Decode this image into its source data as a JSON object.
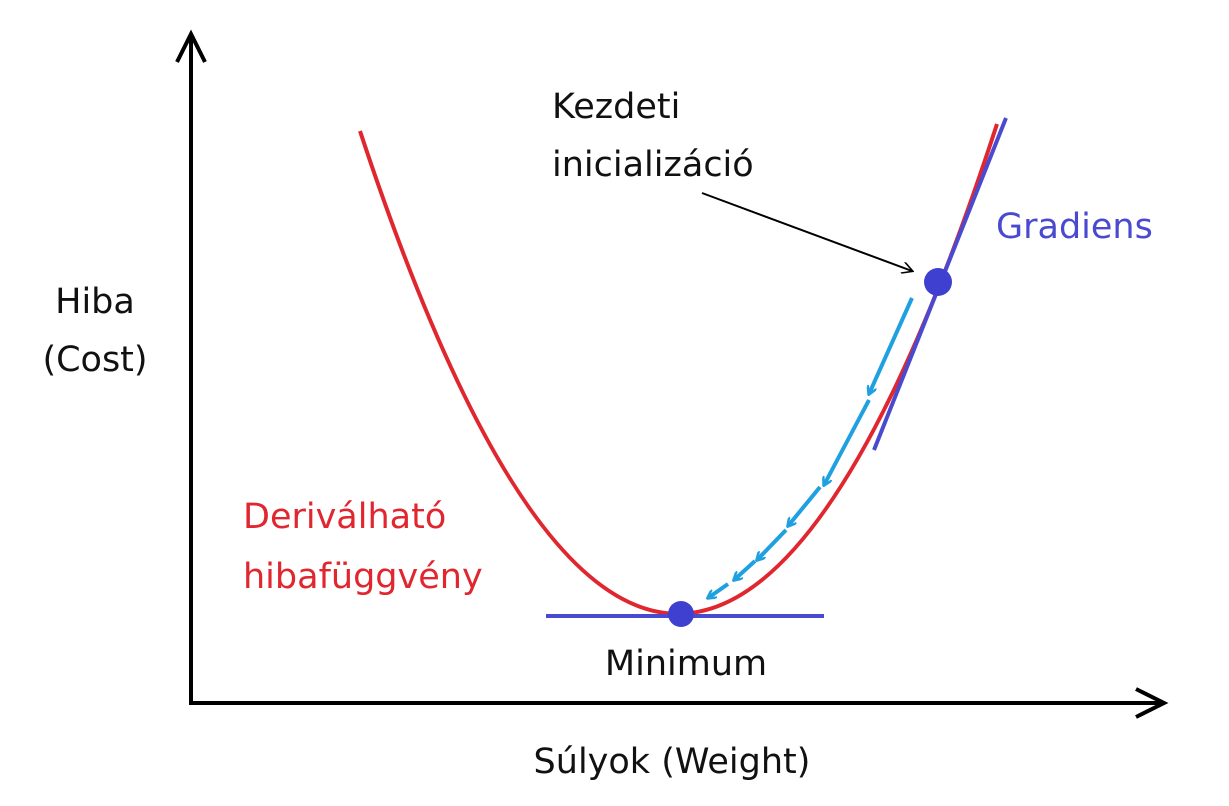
{
  "axes": {
    "y_label_line1": "Hiba",
    "y_label_line2": "(Cost)",
    "x_label": "Súlyok (Weight)"
  },
  "annotations": {
    "start_line1": "Kezdeti",
    "start_line2": "inicializáció",
    "gradient": "Gradiens",
    "function_line1": "Deriválható",
    "function_line2": "hibafüggvény",
    "minimum": "Minimum"
  },
  "colors": {
    "curve": "#e0262e",
    "tangent": "#4a4ad0",
    "points": "#4040d0",
    "steps": "#1fa0e0",
    "axis": "#000000",
    "function_label": "#e0262e",
    "gradient_label": "#4a4ad0"
  },
  "icons": {
    "axis_arrowheads": "arrow-head",
    "descent_steps": "arrow"
  }
}
